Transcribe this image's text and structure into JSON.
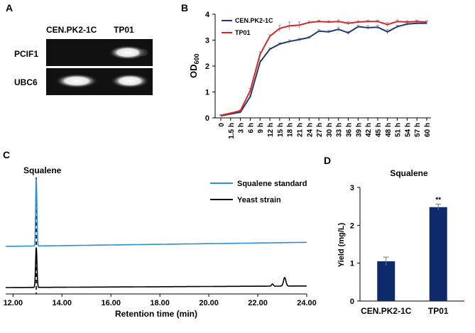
{
  "panels": {
    "a": {
      "letter": "A"
    },
    "b": {
      "letter": "B"
    },
    "c": {
      "letter": "C"
    },
    "d": {
      "letter": "D"
    }
  },
  "gel": {
    "lanes": [
      "CEN.PK2-1C",
      "TP01"
    ],
    "rows": [
      {
        "label": "PCIF1",
        "bands": [
          false,
          true
        ]
      },
      {
        "label": "UBC6",
        "bands": [
          true,
          true
        ]
      }
    ]
  },
  "chart_data": [
    {
      "type": "line",
      "panel": "B",
      "title": "",
      "xlabel": "",
      "ylabel": "OD",
      "ylabel_sub": "600",
      "categories": [
        "0",
        "1.5 h",
        "3 h",
        "6 h",
        "9 h",
        "12 h",
        "15 h",
        "18 h",
        "21 h",
        "24 h",
        "27 h",
        "30 h",
        "33 h",
        "36 h",
        "39 h",
        "42 h",
        "45 h",
        "48 h",
        "51 h",
        "54 h",
        "57 h",
        "60 h"
      ],
      "ylim": [
        0,
        4
      ],
      "yticks": [
        "0",
        "1",
        "2",
        "3",
        "4"
      ],
      "legend_position": "top-left",
      "series": [
        {
          "name": "CEN.PK2-1C",
          "color": "#1f3a7a",
          "values": [
            0.08,
            0.15,
            0.22,
            0.82,
            2.15,
            2.65,
            2.85,
            2.95,
            3.02,
            3.1,
            3.35,
            3.32,
            3.42,
            3.28,
            3.52,
            3.48,
            3.5,
            3.32,
            3.52,
            3.62,
            3.65,
            3.65
          ],
          "errors": [
            0.02,
            0.02,
            0.03,
            0.06,
            0.08,
            0.05,
            0.05,
            0.06,
            0.05,
            0.04,
            0.06,
            0.05,
            0.08,
            0.06,
            0.05,
            0.08,
            0.08,
            0.1,
            0.06,
            0.05,
            0.05,
            0.05
          ]
        },
        {
          "name": "TP01",
          "color": "#d62828",
          "values": [
            0.1,
            0.18,
            0.28,
            1.05,
            2.45,
            3.15,
            3.45,
            3.55,
            3.58,
            3.68,
            3.72,
            3.7,
            3.72,
            3.65,
            3.7,
            3.72,
            3.72,
            3.6,
            3.72,
            3.7,
            3.72,
            3.7
          ],
          "errors": [
            0.02,
            0.02,
            0.03,
            0.08,
            0.1,
            0.06,
            0.12,
            0.15,
            0.12,
            0.05,
            0.05,
            0.05,
            0.06,
            0.06,
            0.05,
            0.05,
            0.05,
            0.08,
            0.06,
            0.05,
            0.05,
            0.05
          ]
        }
      ]
    },
    {
      "type": "line",
      "panel": "C",
      "title": "",
      "xlabel": "Retention time (min)",
      "ylabel": "",
      "xlim": [
        11.7,
        24.0
      ],
      "xticks": [
        "12.00",
        "14.00",
        "16.00",
        "18.00",
        "20.00",
        "22.00",
        "24.00"
      ],
      "xtick_values": [
        12,
        14,
        16,
        18,
        20,
        22,
        24
      ],
      "annotation": "Squalene",
      "annotation_x": 12.95,
      "legend_position": "top-right",
      "series": [
        {
          "name": "Squalene standard",
          "color": "#2f8fd0",
          "baseline": 0.0,
          "drift": 0.06,
          "peaks": [
            {
              "x": 12.95,
              "height": 1.0,
              "width": 0.035
            }
          ]
        },
        {
          "name": "Yeast strain",
          "color": "#000000",
          "baseline": 0.0,
          "drift": 0.03,
          "peaks": [
            {
              "x": 12.95,
              "height": 0.75,
              "width": 0.04
            },
            {
              "x": 22.6,
              "height": 0.04,
              "width": 0.05
            },
            {
              "x": 23.1,
              "height": 0.16,
              "width": 0.07
            }
          ]
        }
      ]
    },
    {
      "type": "bar",
      "panel": "D",
      "title": "Squalene",
      "xlabel": "",
      "ylabel": "Yield (mg/L)",
      "categories": [
        "CEN.PK2-1C",
        "TP01"
      ],
      "values": [
        1.05,
        2.48
      ],
      "errors": [
        0.11,
        0.08
      ],
      "significance": [
        "",
        "**"
      ],
      "ylim": [
        0,
        3
      ],
      "yticks": [
        "0",
        "1",
        "2",
        "3"
      ],
      "color": "#0f2a6b"
    }
  ]
}
